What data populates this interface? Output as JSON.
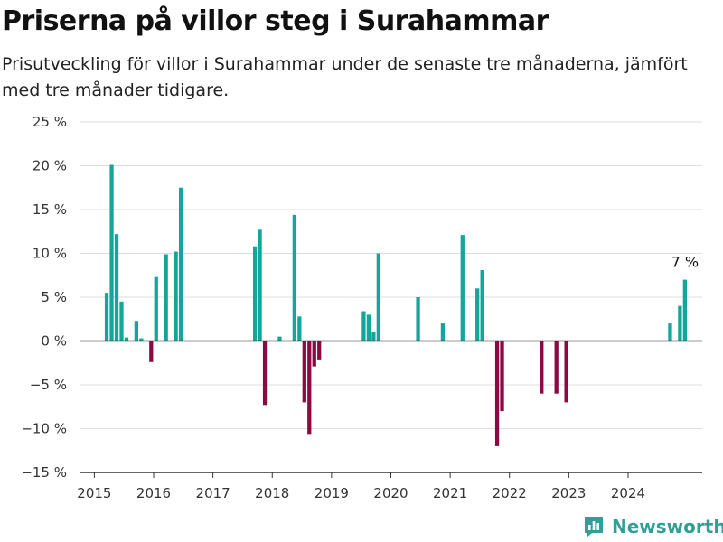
{
  "header": {
    "title": "Priserna på villor steg i Surahammar",
    "subtitle": "Prisutveckling för villor i Surahammar under de senaste tre månaderna, jämfört med tre månader tidigare."
  },
  "brand": {
    "name": "Newsworthy",
    "icon": "newsworthy-logo-icon",
    "color": "#2fa098"
  },
  "colors": {
    "positive": "#14a59b",
    "negative": "#8c0a43",
    "grid": "#dddddd",
    "axis": "#333333"
  },
  "chart_data": {
    "type": "bar",
    "ylim": [
      -15,
      25
    ],
    "xlim": [
      "2014-10",
      "2025-04"
    ],
    "yticks": [
      {
        "value": 25,
        "label": "25 %"
      },
      {
        "value": 20,
        "label": "20 %"
      },
      {
        "value": 15,
        "label": "15 %"
      },
      {
        "value": 10,
        "label": "10 %"
      },
      {
        "value": 5,
        "label": "5 %"
      },
      {
        "value": 0,
        "label": "0 %"
      },
      {
        "value": -5,
        "label": "−5 %"
      },
      {
        "value": -10,
        "label": "−10 %"
      },
      {
        "value": -15,
        "label": "−15 %"
      }
    ],
    "xticks": [
      "2015",
      "2016",
      "2017",
      "2018",
      "2019",
      "2020",
      "2021",
      "2022",
      "2023",
      "2024"
    ],
    "grid": "horizontal",
    "annotation": {
      "label": "7 %",
      "month": "2024-12"
    },
    "bars": [
      {
        "month": "2015-03",
        "value": 5.5
      },
      {
        "month": "2015-04",
        "value": 20.1
      },
      {
        "month": "2015-05",
        "value": 12.2
      },
      {
        "month": "2015-06",
        "value": 4.5
      },
      {
        "month": "2015-07",
        "value": 0.4
      },
      {
        "month": "2015-09",
        "value": 2.3
      },
      {
        "month": "2015-10",
        "value": 0.3
      },
      {
        "month": "2015-12",
        "value": -2.4
      },
      {
        "month": "2016-01",
        "value": 7.3
      },
      {
        "month": "2016-03",
        "value": 9.9
      },
      {
        "month": "2016-05",
        "value": 10.2
      },
      {
        "month": "2016-06",
        "value": 17.5
      },
      {
        "month": "2017-09",
        "value": 10.8
      },
      {
        "month": "2017-10",
        "value": 12.7
      },
      {
        "month": "2017-11",
        "value": -7.3
      },
      {
        "month": "2018-02",
        "value": 0.5
      },
      {
        "month": "2018-05",
        "value": 14.4
      },
      {
        "month": "2018-06",
        "value": 2.8
      },
      {
        "month": "2018-07",
        "value": -7.0
      },
      {
        "month": "2018-08",
        "value": -10.6
      },
      {
        "month": "2018-09",
        "value": -2.9
      },
      {
        "month": "2018-10",
        "value": -2.1
      },
      {
        "month": "2019-07",
        "value": 3.4
      },
      {
        "month": "2019-08",
        "value": 3.0
      },
      {
        "month": "2019-09",
        "value": 1.0
      },
      {
        "month": "2019-10",
        "value": 10.0
      },
      {
        "month": "2020-06",
        "value": 5.0
      },
      {
        "month": "2020-11",
        "value": 2.0
      },
      {
        "month": "2021-03",
        "value": 12.1
      },
      {
        "month": "2021-06",
        "value": 6.0
      },
      {
        "month": "2021-07",
        "value": 8.1
      },
      {
        "month": "2021-10",
        "value": -12.0
      },
      {
        "month": "2021-11",
        "value": -8.0
      },
      {
        "month": "2022-07",
        "value": -6.0
      },
      {
        "month": "2022-10",
        "value": -6.0
      },
      {
        "month": "2022-12",
        "value": -7.0
      },
      {
        "month": "2024-09",
        "value": 2.0
      },
      {
        "month": "2024-11",
        "value": 4.0
      },
      {
        "month": "2024-12",
        "value": 7.0
      }
    ]
  }
}
